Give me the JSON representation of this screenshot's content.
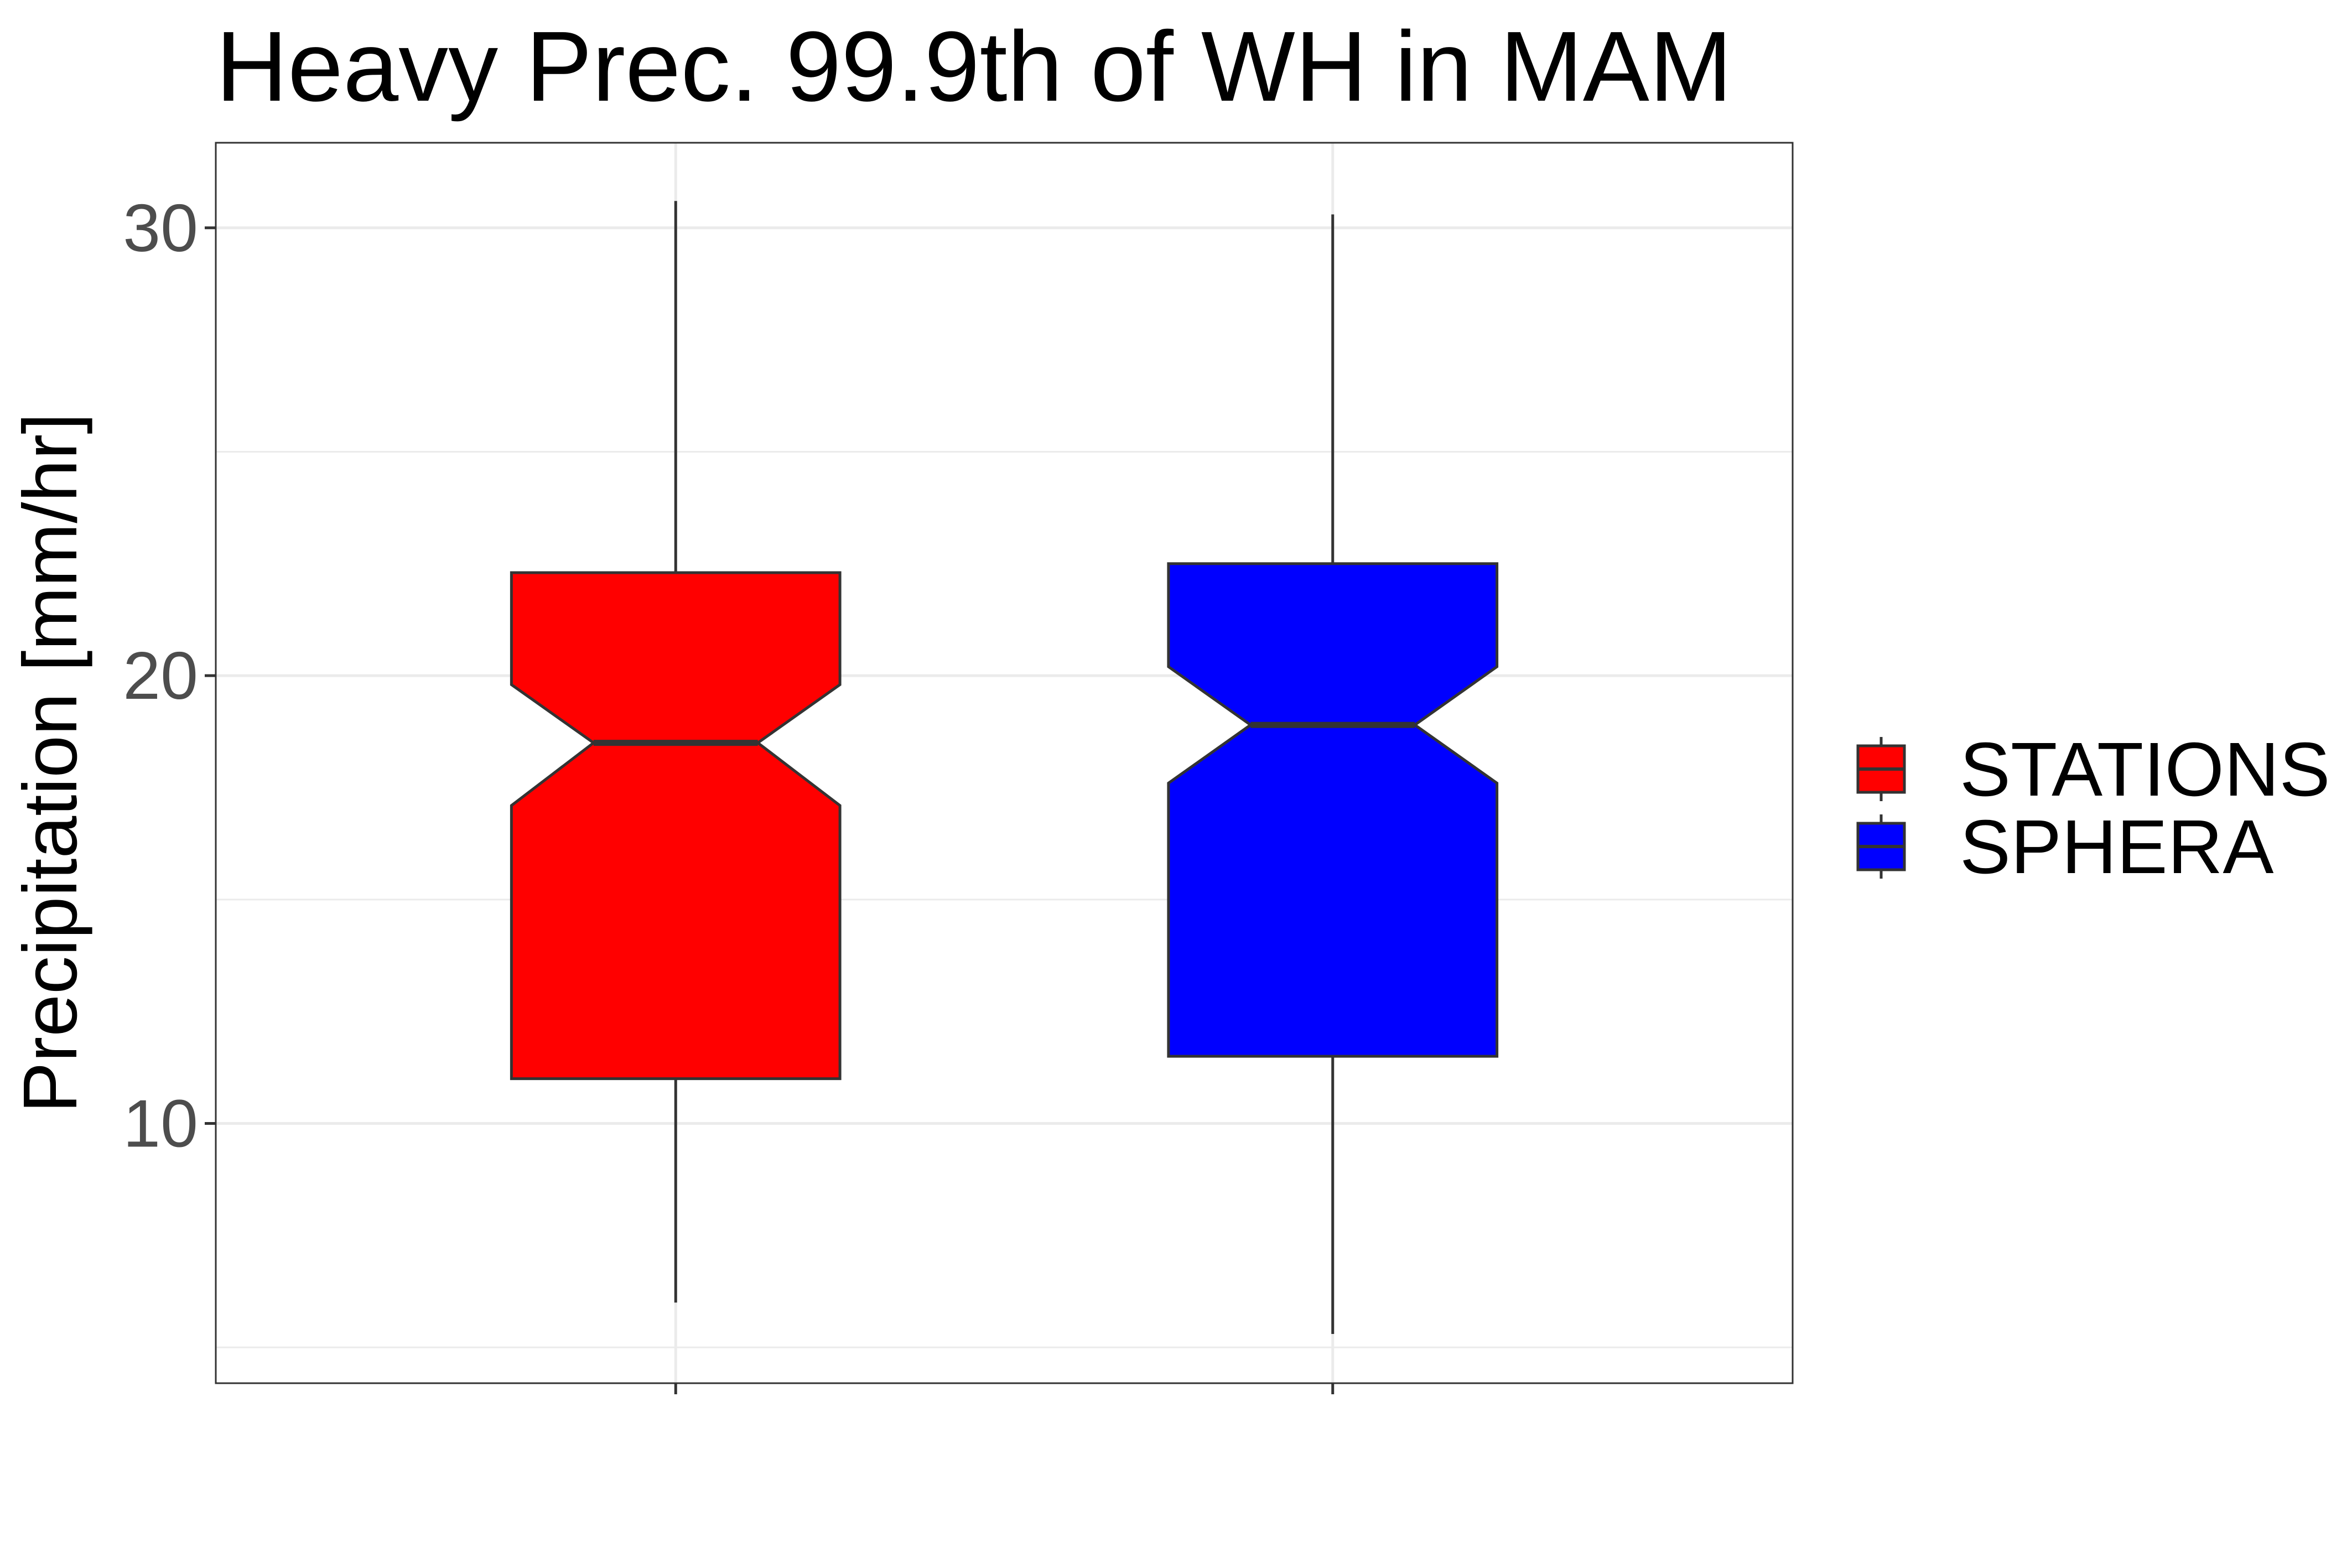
{
  "chart_data": {
    "type": "boxplot",
    "title": "Heavy Prec. 99.9th of WH in MAM",
    "xlabel": "",
    "ylabel": "Precipitation [mm/hr]",
    "ylim": [
      4.2,
      31.9
    ],
    "yticks": [
      10,
      20,
      30
    ],
    "grid": true,
    "notched": true,
    "legend_position": "right",
    "series": [
      {
        "name": "STATIONS",
        "color": "#ff0000",
        "whisker_low": 6.0,
        "q1": 11.0,
        "median": 18.5,
        "q3": 22.3,
        "whisker_high": 30.6,
        "notch_low": 17.1,
        "notch_high": 19.8
      },
      {
        "name": "SPHERA",
        "color": "#0000ff",
        "whisker_low": 5.3,
        "q1": 11.5,
        "median": 18.9,
        "q3": 22.5,
        "whisker_high": 30.3,
        "notch_low": 17.6,
        "notch_high": 20.2
      }
    ]
  }
}
